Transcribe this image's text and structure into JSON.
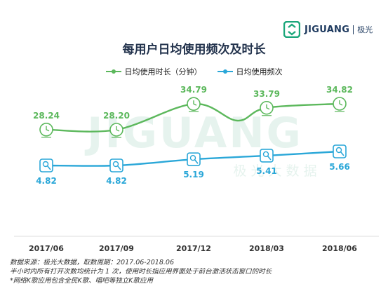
{
  "logo": {
    "name": "JIGUANG",
    "cn": "极光",
    "watermark": "JIGUANG",
    "watermark_cn": "极 光 大 数 据"
  },
  "chart_data": {
    "type": "line",
    "title": "每用户日均使用频次及时长",
    "categories": [
      "2017/06",
      "2017/09",
      "2017/12",
      "2018/03",
      "2018/06"
    ],
    "series": [
      {
        "name": "日均使用时长（分钟）",
        "values": [
          28.24,
          28.2,
          34.79,
          33.79,
          34.82
        ],
        "labels": [
          "28.24",
          "28.20",
          "34.79",
          "33.79",
          "34.82"
        ],
        "color": "#5cb85c",
        "icon": "clock-icon"
      },
      {
        "name": "日均使用频次",
        "values": [
          4.82,
          4.82,
          5.19,
          5.41,
          5.66
        ],
        "labels": [
          "4.82",
          "4.82",
          "5.19",
          "5.41",
          "5.66"
        ],
        "color": "#2aa7d8",
        "icon": "microphone-icon"
      }
    ],
    "legend_position": "top-center",
    "grid": false
  },
  "source": {
    "line1": "数据来源：极光大数据，取数周期：2017.06-2018.06",
    "line2": "半小时内所有打开次数均统计为 1 次，使用时长指应用界面处于前台激活状态窗口的时长",
    "line3": "*网络K歌应用包含全民K歌、唱吧等独立K歌应用"
  }
}
